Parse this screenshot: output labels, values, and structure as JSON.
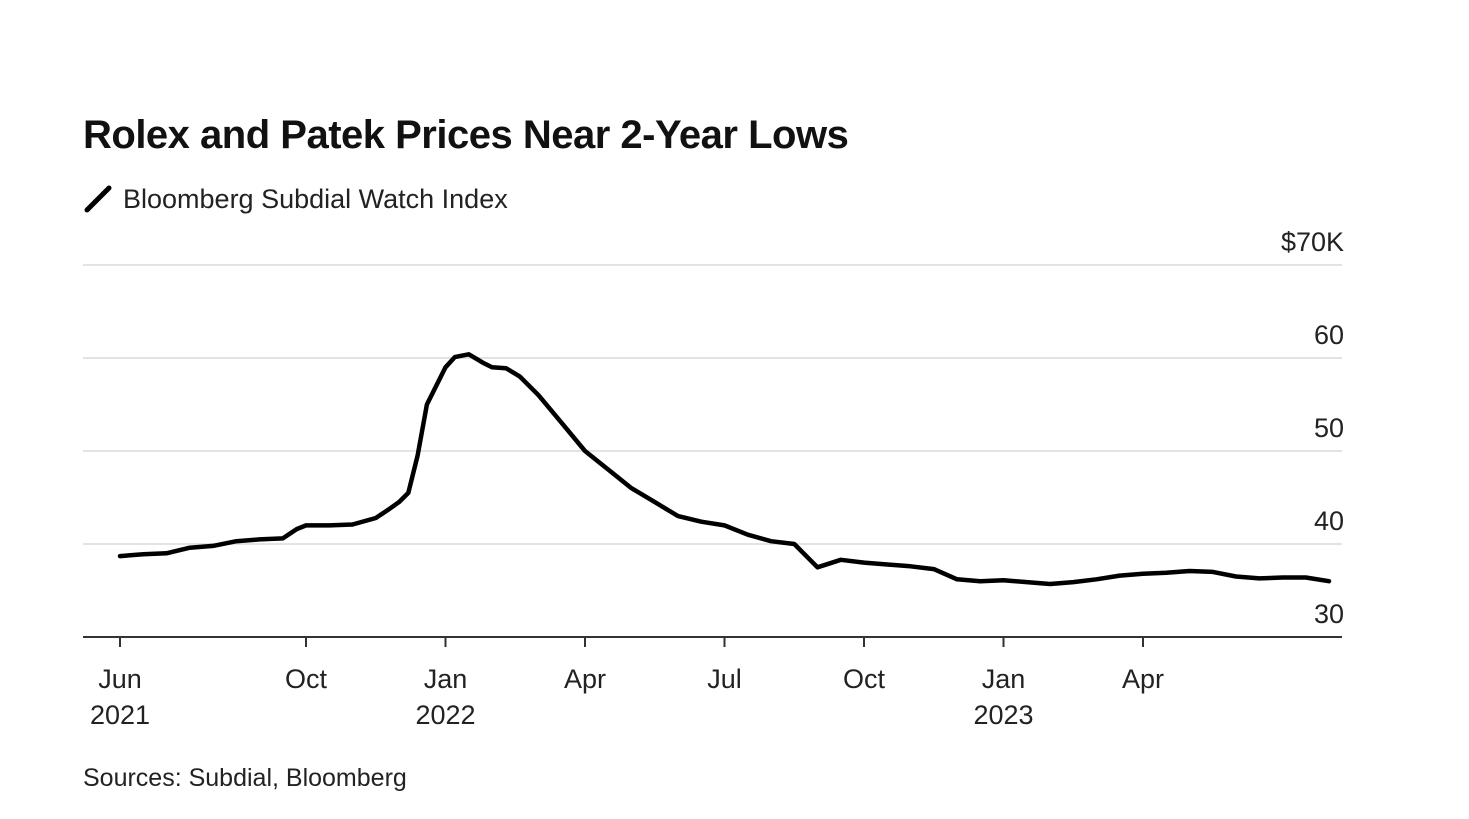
{
  "page": {
    "title": "Rolex and Patek Prices Near 2-Year Lows",
    "source": "Sources: Subdial, Bloomberg"
  },
  "chart_data": {
    "type": "line",
    "title": "Rolex and Patek Prices Near 2-Year Lows",
    "legend": "top-left",
    "series": [
      {
        "name": "Bloomberg Subdial Watch Index",
        "color": "#000000",
        "x_unit": "months since 2021-06-01",
        "x": [
          0,
          0.5,
          1,
          1.5,
          2,
          2.5,
          3,
          3.5,
          3.8,
          4,
          4.5,
          5,
          5.5,
          5.8,
          6,
          6.2,
          6.4,
          6.6,
          6.8,
          7,
          7.2,
          7.5,
          7.8,
          8,
          8.3,
          8.6,
          9,
          9.5,
          10,
          10.5,
          11,
          11.5,
          12,
          12.5,
          13,
          13.5,
          14,
          14.5,
          15,
          15.5,
          16,
          16.5,
          17,
          17.5,
          18,
          18.5,
          19,
          19.5,
          20,
          20.5,
          21,
          21.5,
          22,
          22.5,
          23,
          23.5,
          24,
          24.5,
          25,
          25.5,
          26
        ],
        "values": [
          38.7,
          38.9,
          39.0,
          39.6,
          39.8,
          40.3,
          40.5,
          40.6,
          41.6,
          42.0,
          42.0,
          42.1,
          42.8,
          43.8,
          44.5,
          45.5,
          49.5,
          55.0,
          57.0,
          59.0,
          60.1,
          60.4,
          59.5,
          59.0,
          58.9,
          58.0,
          56.0,
          53.0,
          50.0,
          48.0,
          46.0,
          44.5,
          43.0,
          42.4,
          42.0,
          41.0,
          40.3,
          40.0,
          37.5,
          38.3,
          38.0,
          37.8,
          37.6,
          37.3,
          36.2,
          36.0,
          36.1,
          35.9,
          35.7,
          35.9,
          36.2,
          36.6,
          36.8,
          36.9,
          37.1,
          37.0,
          36.5,
          36.3,
          36.4,
          36.4,
          36.0
        ]
      }
    ],
    "x_ticks": [
      {
        "x": 0,
        "month": "Jun",
        "year": "2021"
      },
      {
        "x": 4,
        "month": "Oct",
        "year": ""
      },
      {
        "x": 7,
        "month": "Jan",
        "year": "2022"
      },
      {
        "x": 10,
        "month": "Apr",
        "year": ""
      },
      {
        "x": 13,
        "month": "Jul",
        "year": ""
      },
      {
        "x": 16,
        "month": "Oct",
        "year": ""
      },
      {
        "x": 19,
        "month": "Jan",
        "year": "2023"
      },
      {
        "x": 22,
        "month": "Apr",
        "year": ""
      }
    ],
    "y_ticks": [
      {
        "value": 70,
        "label": "$70K"
      },
      {
        "value": 60,
        "label": "60"
      },
      {
        "value": 50,
        "label": "50"
      },
      {
        "value": 40,
        "label": "40"
      },
      {
        "value": 30,
        "label": "30"
      }
    ],
    "ylim": [
      30,
      70
    ],
    "grid": true,
    "xlabel": "",
    "ylabel": ""
  },
  "colors": {
    "line": "#000000",
    "grid": "#e3e3e3",
    "axis": "#333333",
    "text": "#111111"
  }
}
